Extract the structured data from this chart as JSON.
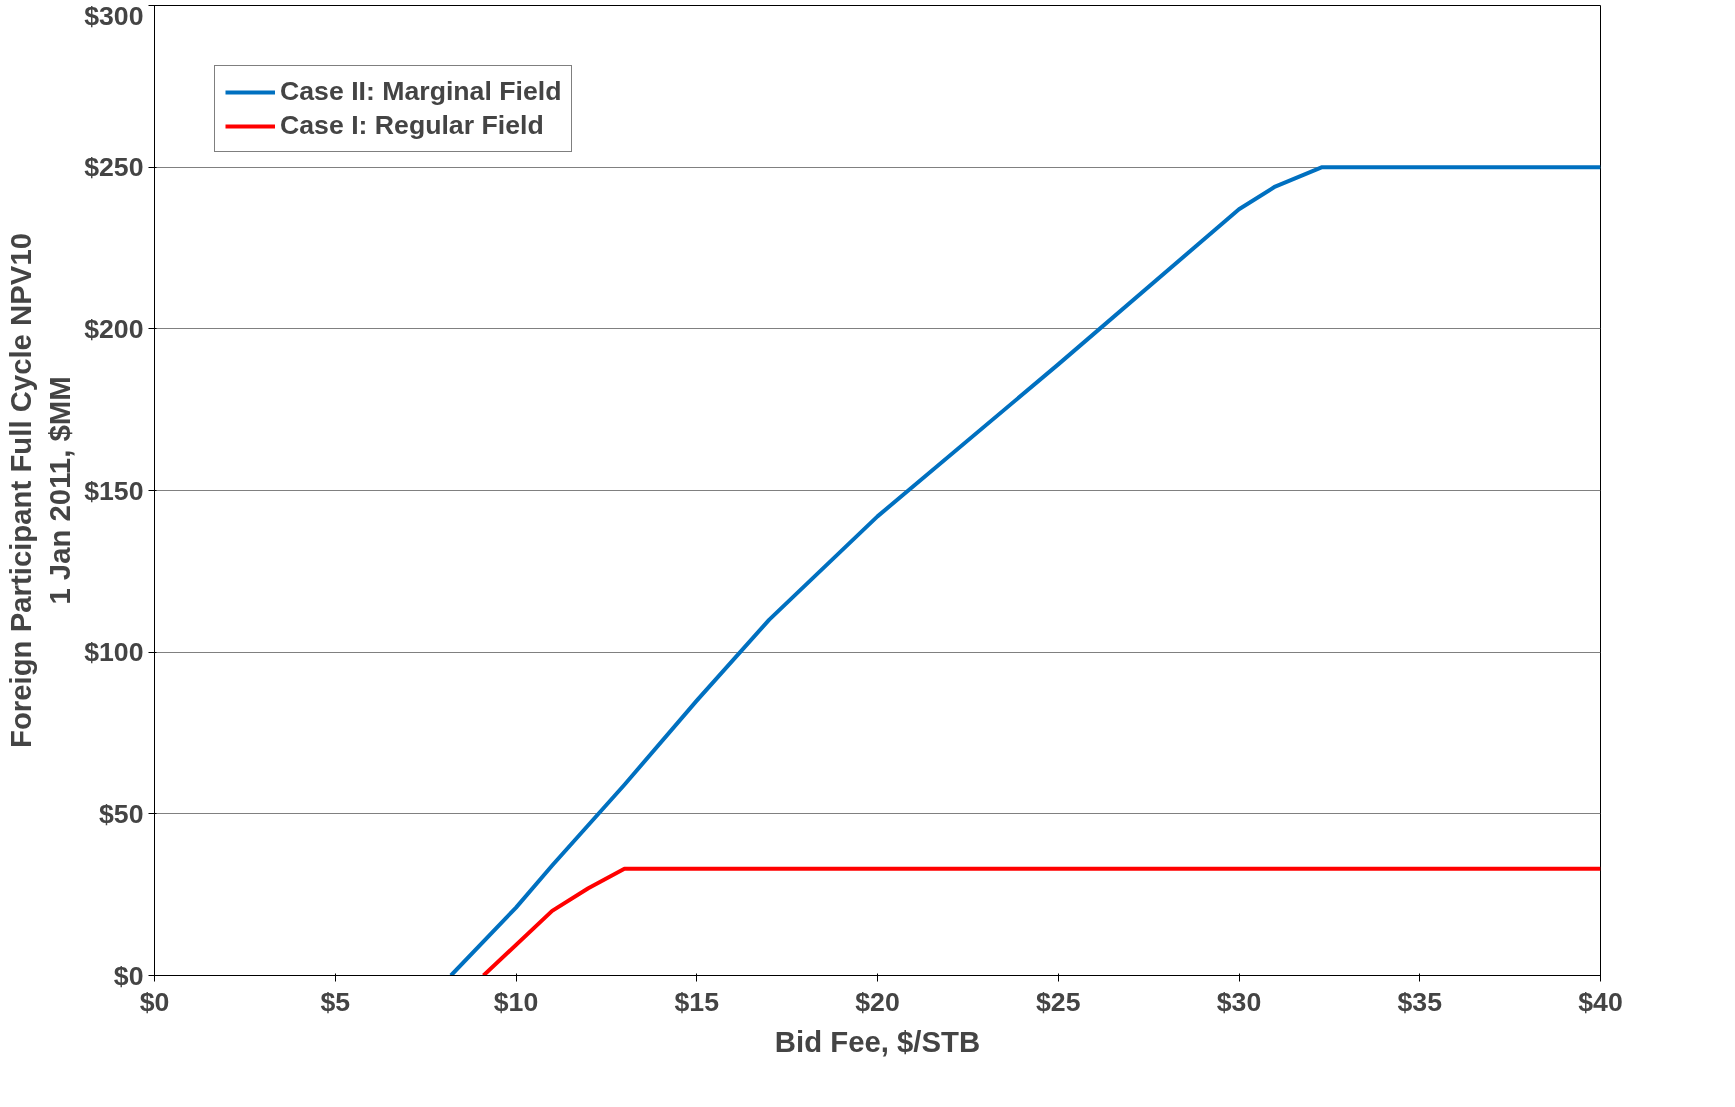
{
  "chart_data": {
    "type": "line",
    "xlabel": "Bid Fee, $/STB",
    "ylabel": "Foreign Participant Full Cycle NPV10\n1 Jan 2011, $MM",
    "xlim": [
      0,
      40
    ],
    "ylim": [
      0,
      300
    ],
    "xticks": [
      {
        "value": 0,
        "label": "$0"
      },
      {
        "value": 5,
        "label": "$5"
      },
      {
        "value": 10,
        "label": "$10"
      },
      {
        "value": 15,
        "label": "$15"
      },
      {
        "value": 20,
        "label": "$20"
      },
      {
        "value": 25,
        "label": "$25"
      },
      {
        "value": 30,
        "label": "$30"
      },
      {
        "value": 35,
        "label": "$35"
      },
      {
        "value": 40,
        "label": "$40"
      }
    ],
    "yticks": [
      {
        "value": 0,
        "label": "$0"
      },
      {
        "value": 50,
        "label": "$50"
      },
      {
        "value": 100,
        "label": "$100"
      },
      {
        "value": 150,
        "label": "$150"
      },
      {
        "value": 200,
        "label": "$200"
      },
      {
        "value": 250,
        "label": "$250"
      },
      {
        "value": 300,
        "label": "$300"
      }
    ],
    "grid": "y",
    "legend": "top left",
    "marker": "none",
    "line_style": "solid",
    "series": [
      {
        "name": "Case II: Marginal Field",
        "color": "#0070c0",
        "x": [
          8.2,
          10,
          11,
          13,
          15,
          17,
          20,
          25,
          30,
          31,
          32.3,
          40
        ],
        "values": [
          0,
          21,
          34,
          59,
          85,
          110,
          142,
          189,
          237,
          244,
          250,
          250
        ]
      },
      {
        "name": "Case I: Regular Field",
        "color": "#ff0000",
        "x": [
          9.1,
          11,
          12,
          13,
          40
        ],
        "values": [
          0,
          20,
          27,
          33,
          33
        ]
      }
    ]
  }
}
